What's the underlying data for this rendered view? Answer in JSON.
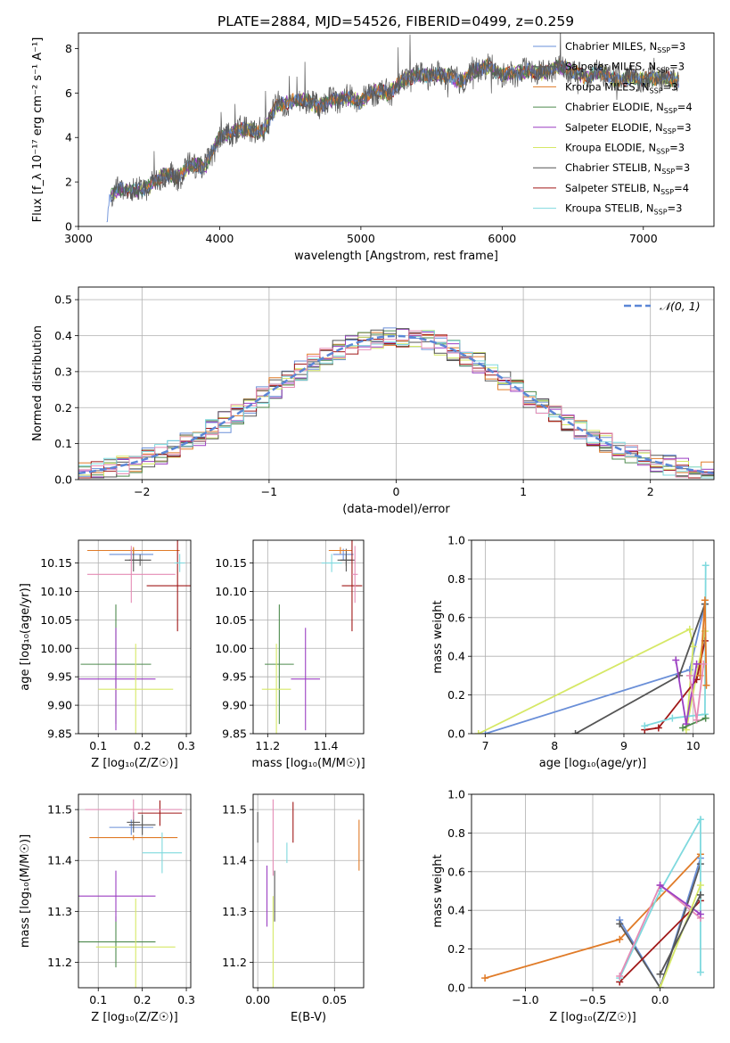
{
  "figure_title": "PLATE=2884, MJD=54526, FIBERID=0499, z=0.259",
  "palette": {
    "Chabrier MILES": "#6a8fd8",
    "Salpeter MILES": "#5a5a5a",
    "Kroupa MILES": "#e07b28",
    "Chabrier ELODIE": "#4e8a4e",
    "Salpeter ELODIE": "#9b3fc2",
    "Kroupa ELODIE": "#d6e866",
    "Chabrier STELIB": "#555555",
    "Salpeter STELIB": "#a01818",
    "Kroupa STELIB": "#7fd9de",
    "pink": "#e58bb5",
    "gauss": "#5b86d6"
  },
  "chart_data": [
    {
      "id": "spectrum",
      "type": "line",
      "title": "PLATE=2884, MJD=54526, FIBERID=0499, z=0.259",
      "xlabel": "wavelength [Angstrom, rest frame]",
      "ylabel": "Flux [f_λ 10⁻¹⁷ erg cm⁻² s⁻¹ A⁻¹]",
      "xlim": [
        3000,
        7500
      ],
      "ylim": [
        0,
        8.7
      ],
      "xticks": [
        "3000",
        "4000",
        "5000",
        "6000",
        "7000"
      ],
      "yticks": [
        "0",
        "2",
        "4",
        "6",
        "8"
      ],
      "grid": false,
      "legend_position": "top-right",
      "legend": [
        {
          "name": "Chabrier MILES",
          "label": "Chabrier MILES, N",
          "sub": "SSP",
          "suffix": "=3",
          "color": "#6a8fd8"
        },
        {
          "name": "Salpeter MILES",
          "label": "Salpeter MILES, N",
          "sub": "SSP",
          "suffix": "=3",
          "color": "#5a5a5a"
        },
        {
          "name": "Kroupa MILES",
          "label": "Kroupa MILES, N",
          "sub": "SSP",
          "suffix": "=3",
          "color": "#e07b28"
        },
        {
          "name": "Chabrier ELODIE",
          "label": "Chabrier ELODIE, N",
          "sub": "SSP",
          "suffix": "=4",
          "color": "#4e8a4e"
        },
        {
          "name": "Salpeter ELODIE",
          "label": "Salpeter ELODIE, N",
          "sub": "SSP",
          "suffix": "=3",
          "color": "#9b3fc2"
        },
        {
          "name": "Kroupa ELODIE",
          "label": "Kroupa ELODIE, N",
          "sub": "SSP",
          "suffix": "=3",
          "color": "#d6e866"
        },
        {
          "name": "Chabrier STELIB",
          "label": "Chabrier STELIB, N",
          "sub": "SSP",
          "suffix": "=3",
          "color": "#555555"
        },
        {
          "name": "Salpeter STELIB",
          "label": "Salpeter STELIB, N",
          "sub": "SSP",
          "suffix": "=4",
          "color": "#a01818"
        },
        {
          "name": "Kroupa STELIB",
          "label": "Kroupa STELIB, N",
          "sub": "SSP",
          "suffix": "=3",
          "color": "#7fd9de"
        }
      ],
      "envelope": {
        "x": [
          3200,
          3220,
          3250,
          3300,
          3400,
          3500,
          3600,
          3700,
          3800,
          3900,
          3950,
          4000,
          4100,
          4200,
          4300,
          4400,
          4500,
          4600,
          4700,
          4800,
          4900,
          5000,
          5100,
          5200,
          5300,
          5400,
          5500,
          5600,
          5700,
          5800,
          5900,
          6000,
          6100,
          6200,
          6300,
          6400,
          6500,
          6600,
          6700,
          6800,
          6900,
          7000,
          7100,
          7200,
          7300
        ],
        "y": [
          0,
          1.4,
          1.5,
          1.7,
          1.6,
          1.8,
          2.3,
          2.2,
          2.8,
          2.7,
          3.4,
          4.0,
          4.3,
          4.4,
          4.2,
          5.4,
          5.6,
          5.7,
          5.4,
          5.7,
          5.8,
          5.6,
          6.1,
          6.0,
          6.6,
          6.8,
          6.8,
          6.8,
          6.5,
          7.0,
          7.2,
          6.8,
          6.9,
          7.0,
          6.9,
          7.2,
          7.0,
          6.7,
          7.0,
          6.6,
          6.7,
          6.6,
          6.7,
          6.6,
          6.6
        ]
      },
      "x_start": [
        3200,
        3230,
        3480,
        3230,
        3230,
        3230,
        3230,
        3230,
        3230
      ],
      "x_end": [
        7250,
        7250,
        7250,
        7250,
        6780,
        7250,
        7250,
        7250,
        7250
      ]
    },
    {
      "id": "residuals",
      "type": "step",
      "xlabel": "(data-model)/error",
      "ylabel": "Normed distribution",
      "xlim": [
        -2.5,
        2.5
      ],
      "ylim": [
        0,
        0.535
      ],
      "xticks": [
        "−2",
        "−1",
        "0",
        "1",
        "2"
      ],
      "yticks": [
        "0.0",
        "0.1",
        "0.2",
        "0.3",
        "0.4",
        "0.5"
      ],
      "grid": true,
      "legend_position": "top-right",
      "gauss_label": "𝒩(0, 1)",
      "bin_width": 0.1
    },
    {
      "id": "age_vs_Z",
      "type": "scatter-errorbar",
      "xlabel": "Z [log₁₀(Z/Z☉)]",
      "ylabel": "age  [log₁₀(age/yr)]",
      "xlim": [
        0.055,
        0.31
      ],
      "ylim": [
        9.85,
        10.19
      ],
      "xticks": [
        "0.1",
        "0.2",
        "0.3"
      ],
      "yticks": [
        "9.85",
        "9.90",
        "9.95",
        "10.00",
        "10.05",
        "10.10",
        "10.15"
      ],
      "grid": true,
      "points": [
        {
          "x": 0.175,
          "y": 10.165,
          "xerr": 0.05,
          "yerr": 0.01,
          "color": "#6a8fd8"
        },
        {
          "x": 0.18,
          "y": 10.155,
          "xerr": 0.02,
          "yerr": 0.02,
          "color": "#5a5a5a"
        },
        {
          "x": 0.18,
          "y": 10.172,
          "xerr": 0.105,
          "yerr": 0.006,
          "color": "#e07b28"
        },
        {
          "x": 0.14,
          "y": 9.972,
          "xerr": 0.08,
          "yerr": 0.105,
          "color": "#4e8a4e"
        },
        {
          "x": 0.14,
          "y": 9.946,
          "xerr": 0.09,
          "yerr": 0.09,
          "color": "#9b3fc2"
        },
        {
          "x": 0.185,
          "y": 9.928,
          "xerr": 0.085,
          "yerr": 0.08,
          "color": "#d6e866"
        },
        {
          "x": 0.195,
          "y": 10.155,
          "xerr": 0.025,
          "yerr": 0.01,
          "color": "#555555"
        },
        {
          "x": 0.28,
          "y": 10.11,
          "xerr": 0.07,
          "yerr": 0.08,
          "color": "#a01818"
        },
        {
          "x": 0.285,
          "y": 10.15,
          "xerr": 0.012,
          "yerr": 0.016,
          "color": "#7fd9de"
        },
        {
          "x": 0.175,
          "y": 10.13,
          "xerr": 0.1,
          "yerr": 0.05,
          "color": "#e58bb5"
        }
      ]
    },
    {
      "id": "age_vs_mass",
      "type": "scatter-errorbar",
      "xlabel": "mass [log₁₀(M/M☉)]",
      "ylabel": "",
      "xlim": [
        11.15,
        11.53
      ],
      "ylim": [
        9.85,
        10.19
      ],
      "xticks": [
        "11.2",
        "11.4"
      ],
      "yticks": [
        "9.85",
        "9.90",
        "9.95",
        "10.00",
        "10.05",
        "10.10",
        "10.15"
      ],
      "grid": true,
      "points": [
        {
          "x": 11.46,
          "y": 10.165,
          "xerr": 0.035,
          "yerr": 0.01,
          "color": "#6a8fd8"
        },
        {
          "x": 11.47,
          "y": 10.155,
          "xerr": 0.03,
          "yerr": 0.02,
          "color": "#5a5a5a"
        },
        {
          "x": 11.45,
          "y": 10.172,
          "xerr": 0.04,
          "yerr": 0.006,
          "color": "#e07b28"
        },
        {
          "x": 11.24,
          "y": 9.972,
          "xerr": 0.05,
          "yerr": 0.105,
          "color": "#4e8a4e"
        },
        {
          "x": 11.33,
          "y": 9.946,
          "xerr": 0.05,
          "yerr": 0.09,
          "color": "#9b3fc2"
        },
        {
          "x": 11.23,
          "y": 9.928,
          "xerr": 0.05,
          "yerr": 0.08,
          "color": "#d6e866"
        },
        {
          "x": 11.47,
          "y": 10.155,
          "xerr": 0.02,
          "yerr": 0.01,
          "color": "#555555"
        },
        {
          "x": 11.49,
          "y": 10.11,
          "xerr": 0.035,
          "yerr": 0.08,
          "color": "#a01818"
        },
        {
          "x": 11.42,
          "y": 10.15,
          "xerr": 0.035,
          "yerr": 0.016,
          "color": "#7fd9de"
        },
        {
          "x": 11.5,
          "y": 10.13,
          "xerr": 0.01,
          "yerr": 0.05,
          "color": "#e58bb5"
        }
      ]
    },
    {
      "id": "weight_vs_age",
      "type": "line",
      "xlabel": "age  [log₁₀(age/yr)]",
      "ylabel": "mass weight",
      "xlim": [
        6.8,
        10.3
      ],
      "ylim": [
        0,
        1.0
      ],
      "xticks": [
        "7",
        "8",
        "9",
        "10"
      ],
      "yticks": [
        "0.0",
        "0.2",
        "0.4",
        "0.6",
        "0.8",
        "1.0"
      ],
      "grid": true,
      "series": [
        {
          "name": "Chabrier MILES",
          "color": "#6a8fd8",
          "x": [
            7.0,
            9.95,
            10.17
          ],
          "y": [
            0.0,
            0.33,
            0.67
          ]
        },
        {
          "name": "Kroupa ELODIE",
          "color": "#d6e866",
          "x": [
            6.9,
            9.95,
            10.0,
            9.9,
            10.17
          ],
          "y": [
            0.0,
            0.54,
            0.45,
            0.02,
            0.53
          ]
        },
        {
          "name": "Chabrier STELIB",
          "color": "#555555",
          "x": [
            8.3,
            9.8,
            10.17
          ],
          "y": [
            0.0,
            0.3,
            0.67
          ]
        },
        {
          "name": "Salpeter STELIB",
          "color": "#a01818",
          "x": [
            9.3,
            9.5,
            10.05,
            10.17
          ],
          "y": [
            0.02,
            0.03,
            0.28,
            0.48
          ]
        },
        {
          "name": "Kroupa STELIB",
          "color": "#7fd9de",
          "x": [
            9.3,
            9.7,
            10.17,
            10.18
          ],
          "y": [
            0.04,
            0.08,
            0.1,
            0.87
          ]
        },
        {
          "name": "Kroupa MILES",
          "color": "#e07b28",
          "x": [
            10.1,
            10.17,
            10.19
          ],
          "y": [
            0.3,
            0.69,
            0.25
          ]
        },
        {
          "name": "Salpeter ELODIE",
          "color": "#9b3fc2",
          "x": [
            9.75,
            9.9,
            10.05
          ],
          "y": [
            0.38,
            0.05,
            0.36
          ]
        },
        {
          "name": "Chabrier ELODIE",
          "color": "#4e8a4e",
          "x": [
            9.85,
            10.18
          ],
          "y": [
            0.03,
            0.08
          ]
        },
        {
          "name": "pink",
          "color": "#e58bb5",
          "x": [
            9.95,
            10.05,
            10.15
          ],
          "y": [
            0.3,
            0.07,
            0.36
          ]
        }
      ]
    },
    {
      "id": "mass_vs_Z",
      "type": "scatter-errorbar",
      "xlabel": "Z [log₁₀(Z/Z☉)]",
      "ylabel": "mass [log₁₀(M/M☉)]",
      "xlim": [
        0.055,
        0.31
      ],
      "ylim": [
        11.15,
        11.53
      ],
      "xticks": [
        "0.1",
        "0.2",
        "0.3"
      ],
      "yticks": [
        "11.2",
        "11.3",
        "11.4",
        "11.5"
      ],
      "grid": true,
      "points": [
        {
          "x": 0.175,
          "y": 11.465,
          "xerr": 0.05,
          "yerr": 0.015,
          "color": "#6a8fd8"
        },
        {
          "x": 0.18,
          "y": 11.475,
          "xerr": 0.015,
          "yerr": 0.02,
          "color": "#5a5a5a"
        },
        {
          "x": 0.18,
          "y": 11.445,
          "xerr": 0.1,
          "yerr": 0.005,
          "color": "#e07b28"
        },
        {
          "x": 0.14,
          "y": 11.24,
          "xerr": 0.09,
          "yerr": 0.05,
          "color": "#4e8a4e"
        },
        {
          "x": 0.14,
          "y": 11.33,
          "xerr": 0.09,
          "yerr": 0.05,
          "color": "#9b3fc2"
        },
        {
          "x": 0.185,
          "y": 11.23,
          "xerr": 0.09,
          "yerr": 0.095,
          "color": "#d6e866"
        },
        {
          "x": 0.2,
          "y": 11.47,
          "xerr": 0.03,
          "yerr": 0.02,
          "color": "#555555"
        },
        {
          "x": 0.24,
          "y": 11.493,
          "xerr": 0.05,
          "yerr": 0.025,
          "color": "#a01818"
        },
        {
          "x": 0.245,
          "y": 11.415,
          "xerr": 0.045,
          "yerr": 0.04,
          "color": "#7fd9de"
        },
        {
          "x": 0.18,
          "y": 11.5,
          "xerr": 0.11,
          "yerr": 0.02,
          "color": "#e58bb5"
        }
      ]
    },
    {
      "id": "mass_vs_EBV",
      "type": "scatter-errorbar",
      "xlabel": "E(B-V)",
      "ylabel": "",
      "xlim": [
        -0.003,
        0.069
      ],
      "ylim": [
        11.15,
        11.53
      ],
      "xticks": [
        "0.00",
        "0.05"
      ],
      "yticks": [
        "11.2",
        "11.3",
        "11.4",
        "11.5"
      ],
      "grid": true,
      "points": [
        {
          "x": 0.0,
          "y": 11.465,
          "xerr": 0,
          "yerr": 0.03,
          "color": "#5a5a5a"
        },
        {
          "x": 0.006,
          "y": 11.33,
          "xerr": 0,
          "yerr": 0.06,
          "color": "#9b3fc2"
        },
        {
          "x": 0.01,
          "y": 11.23,
          "xerr": 0,
          "yerr": 0.1,
          "color": "#d6e866"
        },
        {
          "x": 0.01,
          "y": 11.445,
          "xerr": 0,
          "yerr": 0.075,
          "color": "#e58bb5"
        },
        {
          "x": 0.011,
          "y": 11.33,
          "xerr": 0,
          "yerr": 0.05,
          "color": "#555555"
        },
        {
          "x": 0.019,
          "y": 11.415,
          "xerr": 0,
          "yerr": 0.02,
          "color": "#7fd9de"
        },
        {
          "x": 0.023,
          "y": 11.475,
          "xerr": 0,
          "yerr": 0.04,
          "color": "#a01818"
        },
        {
          "x": 0.066,
          "y": 11.43,
          "xerr": 0,
          "yerr": 0.05,
          "color": "#e07b28"
        }
      ]
    },
    {
      "id": "weight_vs_Z",
      "type": "line",
      "xlabel": "Z [log₁₀(Z/Z☉)]",
      "ylabel": "mass weight",
      "xlim": [
        -1.4,
        0.4
      ],
      "ylim": [
        0,
        1.0
      ],
      "xticks": [
        "−1.0",
        "−0.5",
        "0.0"
      ],
      "yticks": [
        "0.0",
        "0.2",
        "0.4",
        "0.6",
        "0.8",
        "1.0"
      ],
      "grid": true,
      "series": [
        {
          "name": "Kroupa MILES",
          "color": "#e07b28",
          "x": [
            -1.3,
            -0.3,
            0.3
          ],
          "y": [
            0.05,
            0.25,
            0.69
          ]
        },
        {
          "name": "Chabrier MILES",
          "color": "#6a8fd8",
          "x": [
            -0.3,
            0.0,
            0.3
          ],
          "y": [
            0.35,
            0.0,
            0.67
          ]
        },
        {
          "name": "Salpeter MILES",
          "color": "#5a5a5a",
          "x": [
            -0.3,
            0.0,
            0.3
          ],
          "y": [
            0.33,
            0.0,
            0.64
          ]
        },
        {
          "name": "Salpeter STELIB",
          "color": "#a01818",
          "x": [
            -0.3,
            0.3
          ],
          "y": [
            0.03,
            0.45
          ]
        },
        {
          "name": "Kroupa STELIB",
          "color": "#7fd9de",
          "x": [
            -0.3,
            0.0,
            0.3,
            0.3
          ],
          "y": [
            0.05,
            0.5,
            0.87,
            0.08
          ]
        },
        {
          "name": "pink",
          "color": "#e58bb5",
          "x": [
            -0.3,
            0.0,
            0.3
          ],
          "y": [
            0.06,
            0.53,
            0.36
          ]
        },
        {
          "name": "Salpeter ELODIE",
          "color": "#9b3fc2",
          "x": [
            0.0,
            0.3
          ],
          "y": [
            0.53,
            0.38
          ]
        },
        {
          "name": "Kroupa ELODIE",
          "color": "#d6e866",
          "x": [
            0.0,
            0.3
          ],
          "y": [
            0.0,
            0.53
          ]
        },
        {
          "name": "Chabrier STELIB",
          "color": "#555555",
          "x": [
            0.0,
            0.3
          ],
          "y": [
            0.07,
            0.48
          ]
        }
      ]
    }
  ]
}
